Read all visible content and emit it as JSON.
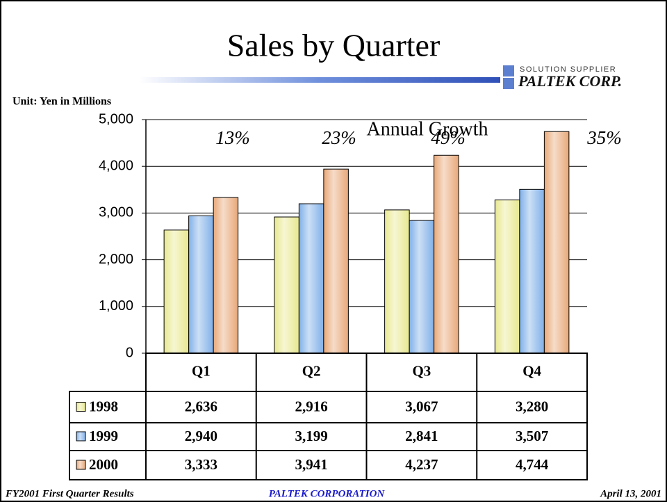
{
  "chart_data": {
    "type": "bar",
    "title": "Sales by Quarter",
    "logo_tagline": "SOLUTION SUPPLIER",
    "logo_name": "PALTEK CORP.",
    "unit_label": "Unit: Yen in Millions",
    "annotation_title": "Annual Growth",
    "growth": {
      "values": [
        13,
        23,
        49,
        35
      ],
      "value_labels": [
        "13%",
        "23%",
        "49%",
        "35%"
      ]
    },
    "categories": [
      "Q1",
      "Q2",
      "Q3",
      "Q4"
    ],
    "series": [
      {
        "name": "1998",
        "color": "#e8e890",
        "values": [
          2636,
          2916,
          3067,
          3280
        ],
        "value_labels": [
          "2,636",
          "2,916",
          "3,067",
          "3,280"
        ]
      },
      {
        "name": "1999",
        "color": "#80b0e8",
        "values": [
          2940,
          3199,
          2841,
          3507
        ],
        "value_labels": [
          "2,940",
          "3,199",
          "2,841",
          "3,507"
        ]
      },
      {
        "name": "2000",
        "color": "#e8a878",
        "values": [
          3333,
          3941,
          4237,
          4744
        ],
        "value_labels": [
          "3,333",
          "3,941",
          "4,237",
          "4,744"
        ]
      }
    ],
    "ylim": [
      0,
      5000
    ],
    "yticks": [
      0,
      {
        "value": 1000,
        "label": "1,000"
      },
      {
        "value": 2000,
        "label": "2,000"
      },
      {
        "value": 3000,
        "label": "3,000"
      },
      {
        "value": 4000,
        "label": "4,000"
      },
      {
        "value": 5000,
        "label": "5,000"
      }
    ],
    "grid": true,
    "footer_left": "FY2001 First Quarter Results",
    "footer_center": "PALTEK CORPORATION",
    "footer_right": "April 13, 2001"
  }
}
